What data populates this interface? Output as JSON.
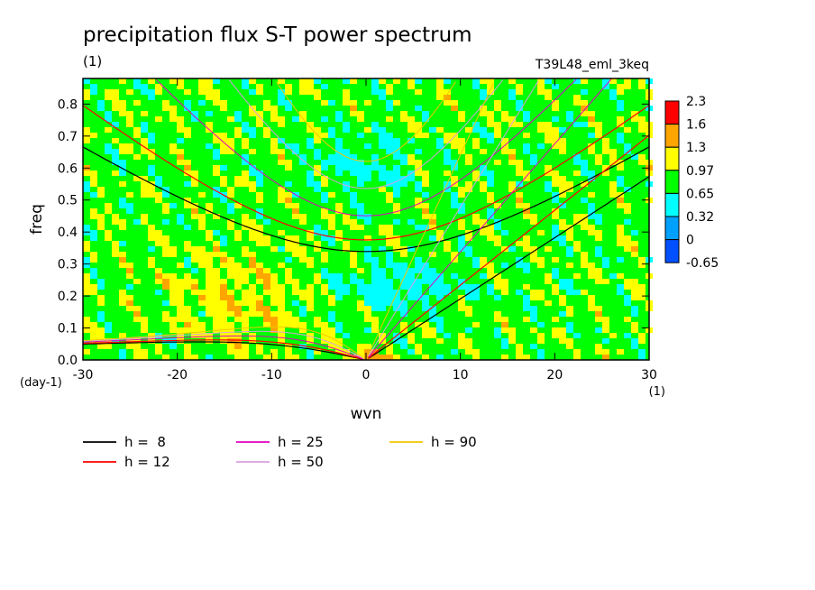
{
  "chart_data": {
    "type": "heatmap",
    "title": "precipitation flux S-T power spectrum",
    "subtitle_left": "(1)",
    "subtitle_right": "T39L48_eml_3keq",
    "xlabel": "wvn",
    "ylabel": "freq",
    "x_unit": "(1)",
    "y_unit": "(day-1)",
    "xlim": [
      -30,
      30
    ],
    "ylim": [
      0,
      0.88
    ],
    "x_ticks": [
      -30,
      -20,
      -10,
      0,
      10,
      20,
      30
    ],
    "x_tick_labels": [
      "-30",
      "-20",
      "-10",
      "0",
      "10",
      "20",
      "30"
    ],
    "y_ticks": [
      0.0,
      0.1,
      0.2,
      0.3,
      0.4,
      0.5,
      0.6,
      0.7,
      0.8
    ],
    "y_tick_labels": [
      "0.0",
      "0.1",
      "0.2",
      "0.3",
      "0.4",
      "0.5",
      "0.6",
      "0.7",
      "0.8"
    ],
    "colorbar": {
      "levels": [
        "2.3",
        "1.6",
        "1.3",
        "0.97",
        "0.65",
        "0.32",
        "0",
        "-0.65"
      ],
      "colors": [
        "#ff0000",
        "#ffa500",
        "#ffff00",
        "#00ff00",
        "#00ffff",
        "#00a0ff",
        "#0050ff"
      ]
    },
    "grid": false,
    "legend": {
      "placement": "bottom",
      "entries": [
        {
          "label": "h =  8",
          "color": "#000000"
        },
        {
          "label": "h = 12",
          "color": "#ff0000"
        },
        {
          "label": "h = 25",
          "color": "#e000c0"
        },
        {
          "label": "h = 50",
          "color": "#d8a0e0"
        },
        {
          "label": "h = 90",
          "color": "#f0c800"
        }
      ]
    }
  }
}
